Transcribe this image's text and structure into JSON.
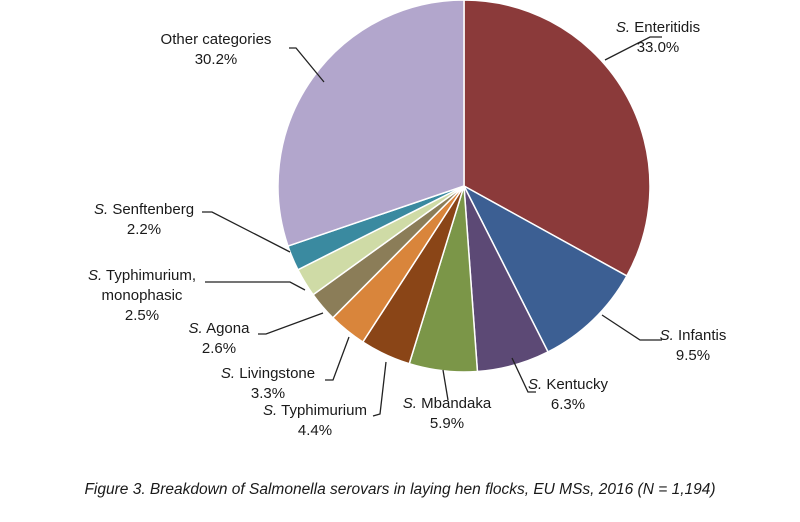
{
  "chart_data": {
    "type": "pie",
    "start_angle_deg": 0,
    "direction": "clockwise",
    "slices": [
      {
        "genus": "S.",
        "serovar": "Enteritidis",
        "line2": "",
        "value": 33.0,
        "pct_label": "33.0%",
        "color": "#8b3a3a"
      },
      {
        "genus": "S.",
        "serovar": "Infantis",
        "line2": "",
        "value": 9.5,
        "pct_label": "9.5%",
        "color": "#3c5f93"
      },
      {
        "genus": "S.",
        "serovar": "Kentucky",
        "line2": "",
        "value": 6.3,
        "pct_label": "6.3%",
        "color": "#5c4975"
      },
      {
        "genus": "S.",
        "serovar": "Mbandaka",
        "line2": "",
        "value": 5.9,
        "pct_label": "5.9%",
        "color": "#7b9648"
      },
      {
        "genus": "S.",
        "serovar": "Typhimurium",
        "line2": "",
        "value": 4.4,
        "pct_label": "4.4%",
        "color": "#8a4517"
      },
      {
        "genus": "S.",
        "serovar": "Livingstone",
        "line2": "",
        "value": 3.3,
        "pct_label": "3.3%",
        "color": "#d9853b"
      },
      {
        "genus": "S.",
        "serovar": "Agona",
        "line2": "",
        "value": 2.6,
        "pct_label": "2.6%",
        "color": "#8b7d58"
      },
      {
        "genus": "S.",
        "serovar": "Typhimurium,",
        "line2": "monophasic",
        "value": 2.5,
        "pct_label": "2.5%",
        "color": "#cfdba6"
      },
      {
        "genus": "S.",
        "serovar": "Senftenberg",
        "line2": "",
        "value": 2.2,
        "pct_label": "2.2%",
        "color": "#3a8aa0"
      },
      {
        "genus": "",
        "serovar": "Other categories",
        "line2": "",
        "value": 30.2,
        "pct_label": "30.2%",
        "color": "#b2a6cc"
      }
    ]
  },
  "caption": "Figure 3. Breakdown of Salmonella serovars in laying hen flocks, EU MSs, 2016 (N = 1,194)"
}
